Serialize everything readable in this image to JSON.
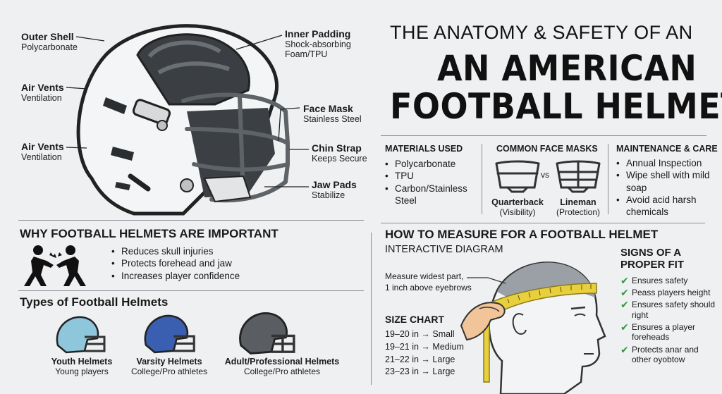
{
  "title": {
    "line1": "THE ANATOMY & SAFETY OF AN",
    "line2": "AN AMERICAN",
    "line3": "FOOTBALL HELMET"
  },
  "anatomy": {
    "outer_shell": {
      "label": "Outer Shell",
      "sub": "Polycarbonate"
    },
    "air_vents_1": {
      "label": "Air Vents",
      "sub": "Ventilation"
    },
    "air_vents_2": {
      "label": "Air Vents",
      "sub": "Ventilation"
    },
    "inner_padding": {
      "label": "Inner Padding",
      "sub1": "Shock-absorbing",
      "sub2": "Foam/TPU"
    },
    "face_mask": {
      "label": "Face Mask",
      "sub": "Stainless Steel"
    },
    "chin_strap": {
      "label": "Chin Strap",
      "sub": "Keeps Secure"
    },
    "jaw_pads": {
      "label": "Jaw Pads",
      "sub": "Stabilize"
    }
  },
  "materials": {
    "title": "MATERIALS USED",
    "items": [
      "Polycarbonate",
      "TPU",
      "Carbon/Stainless Steel"
    ]
  },
  "face_masks": {
    "title": "COMMON FACE MASKS",
    "vs": "vs",
    "left": {
      "name": "Quarterback",
      "note": "(Visibility)"
    },
    "right": {
      "name": "Lineman",
      "note": "(Protection)"
    }
  },
  "maintenance": {
    "title": "MAINTENANCE & CARE",
    "items": [
      "Annual Inspection",
      "Wipe shell with mild soap",
      "Avoid acid harsh chemicals"
    ]
  },
  "why": {
    "title": "WHY FOOTBALL HELMETS ARE IMPORTANT",
    "items": [
      "Reduces skull injuries",
      "Protects forehead and jaw",
      "Increases player confidence"
    ]
  },
  "types": {
    "title": "Types of Football Helmets",
    "items": [
      {
        "name": "Youth Helmets",
        "desc": "Young players",
        "color": "#8ec6dc"
      },
      {
        "name": "Varsity Helmets",
        "desc": "College/Pro athletes",
        "color": "#3a5fb0"
      },
      {
        "name": "Adult/Professional Helmets",
        "desc": "College/Pro athletes",
        "color": "#5a5d61"
      }
    ]
  },
  "measure": {
    "title": "HOW TO MEASURE FOR A FOOTBALL HELMET",
    "subtitle": "INTERACTIVE DIAGRAM",
    "note1": "Measure widest part,",
    "note2": "1 inch above eyebrows"
  },
  "size_chart": {
    "title": "SIZE CHART",
    "rows": [
      "19–20 in → Small",
      "19–21 in → Medium",
      "21–22 in → Large",
      "23–23 in → Large"
    ]
  },
  "fit": {
    "title1": "SIGNS OF A",
    "title2": "PROPER FIT",
    "items": [
      "Ensures safety",
      "Peass players height",
      "Ensures safety should right",
      "Ensures a player foreheads",
      "Protects anar and other oyobtow"
    ]
  },
  "colors": {
    "check": "#2e9a3c",
    "tape": "#e8cf3c",
    "skin": "#f2c49a"
  }
}
